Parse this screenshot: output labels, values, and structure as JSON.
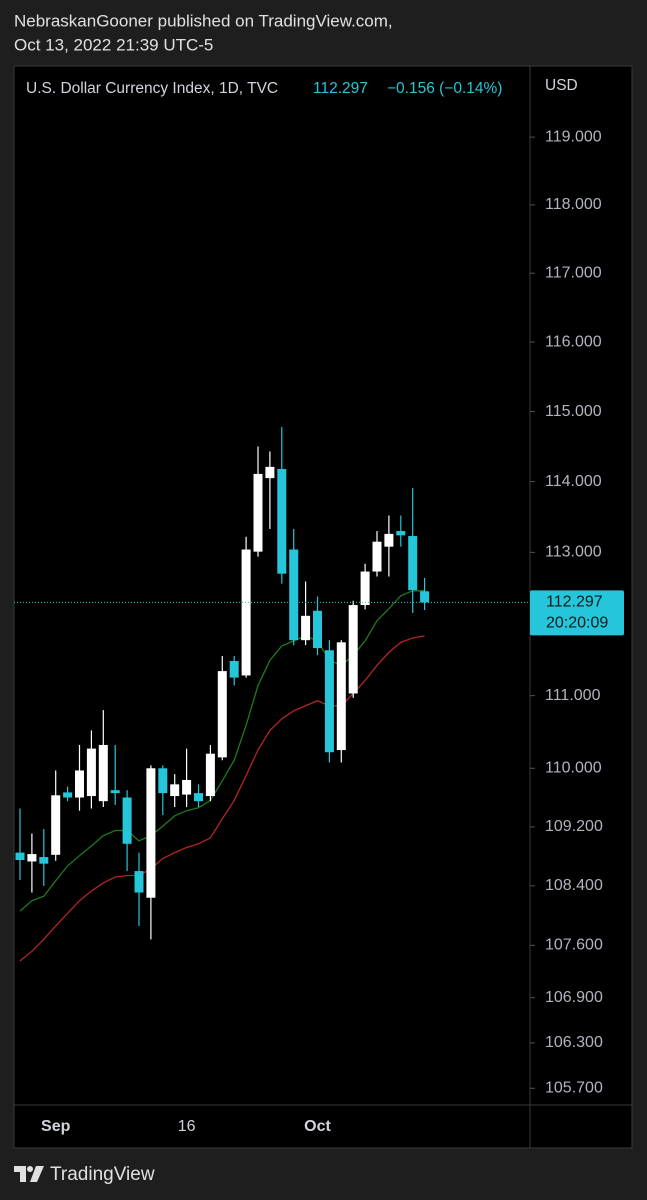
{
  "header": {
    "author_line": "NebraskanGooner published on TradingView.com,",
    "date_line": "Oct 13, 2022 21:39 UTC-5"
  },
  "chart_data": {
    "type": "candlestick",
    "title": "U.S. Dollar Currency Index, 1D, TVC",
    "change": "−0.156 (−0.14%)",
    "currency": "USD",
    "countdown": "20:20:09",
    "categories": [
      null,
      null,
      null,
      "Sep",
      null,
      null,
      null,
      null,
      null,
      null,
      null,
      null,
      null,
      null,
      "16",
      null,
      null,
      null,
      null,
      null,
      null,
      null,
      null,
      null,
      null,
      "Oct",
      null,
      null,
      null,
      null,
      null,
      null,
      null,
      null,
      null
    ],
    "open": [
      108.85,
      108.73,
      108.79,
      108.82,
      109.67,
      109.6,
      109.62,
      109.55,
      109.7,
      109.6,
      108.6,
      108.24,
      110.0,
      109.62,
      109.64,
      109.66,
      109.62,
      110.15,
      111.48,
      111.28,
      113.01,
      114.05,
      114.18,
      113.04,
      111.77,
      112.18,
      111.63,
      110.25,
      111.03,
      112.26,
      112.73,
      113.08,
      113.3,
      113.23,
      112.453
    ],
    "high": [
      109.45,
      109.11,
      109.17,
      109.97,
      109.75,
      110.32,
      110.52,
      110.8,
      110.32,
      109.7,
      108.85,
      110.04,
      110.04,
      109.92,
      110.27,
      109.78,
      110.32,
      111.55,
      111.55,
      113.22,
      114.5,
      114.43,
      114.78,
      113.33,
      112.59,
      112.38,
      111.77,
      111.77,
      112.32,
      112.84,
      113.3,
      113.52,
      113.52,
      113.91,
      112.64
    ],
    "low": [
      108.48,
      108.31,
      108.4,
      108.74,
      109.55,
      109.42,
      109.45,
      109.47,
      109.5,
      108.6,
      107.86,
      107.68,
      109.36,
      109.47,
      109.47,
      109.47,
      109.55,
      110.11,
      111.14,
      111.25,
      112.94,
      113.33,
      112.56,
      111.7,
      111.7,
      111.56,
      110.08,
      110.08,
      110.97,
      112.2,
      112.66,
      112.66,
      113.08,
      112.15,
      112.19
    ],
    "close": [
      108.75,
      108.83,
      108.7,
      109.63,
      109.6,
      109.97,
      110.27,
      110.32,
      109.66,
      108.97,
      108.31,
      110.0,
      109.66,
      109.78,
      109.84,
      109.55,
      110.2,
      111.34,
      111.25,
      113.04,
      114.11,
      114.21,
      112.7,
      111.77,
      112.11,
      111.66,
      110.22,
      111.74,
      112.26,
      112.73,
      113.15,
      113.26,
      113.24,
      112.47,
      112.297
    ],
    "up_color": "#ffffff",
    "down_color": "#26c6da",
    "lines": [
      {
        "color": "#1f7a1f",
        "values": [
          108.06,
          108.2,
          108.26,
          108.47,
          108.67,
          108.81,
          108.94,
          109.08,
          109.15,
          109.15,
          109.01,
          109.08,
          109.21,
          109.35,
          109.42,
          109.46,
          109.56,
          109.83,
          110.11,
          110.59,
          111.14,
          111.49,
          111.69,
          111.76,
          111.83,
          111.76,
          111.49,
          111.42,
          111.56,
          111.76,
          112.04,
          112.21,
          112.39,
          112.46,
          112.46
        ]
      },
      {
        "color": "#b52424",
        "values": [
          107.39,
          107.52,
          107.68,
          107.86,
          108.03,
          108.2,
          108.33,
          108.44,
          108.52,
          108.54,
          108.54,
          108.63,
          108.77,
          108.85,
          108.92,
          108.97,
          109.05,
          109.31,
          109.56,
          109.9,
          110.25,
          110.52,
          110.68,
          110.79,
          110.86,
          110.93,
          110.86,
          110.86,
          111.03,
          111.21,
          111.42,
          111.6,
          111.74,
          111.8,
          111.83
        ]
      }
    ],
    "ylim": [
      105.48,
      120.06
    ],
    "log_scale": true,
    "yticks": [
      {
        "value": 119,
        "label": "119.000"
      },
      {
        "value": 118,
        "label": "118.000"
      },
      {
        "value": 117,
        "label": "117.000"
      },
      {
        "value": 116,
        "label": "116.000"
      },
      {
        "value": 115,
        "label": "115.000"
      },
      {
        "value": 114,
        "label": "114.000"
      },
      {
        "value": 113,
        "label": "113.000"
      },
      {
        "value": 111,
        "label": "111.000"
      },
      {
        "value": 110,
        "label": "110.000"
      },
      {
        "value": 109.2,
        "label": "109.200"
      },
      {
        "value": 108.4,
        "label": "108.400"
      },
      {
        "value": 107.6,
        "label": "107.600"
      },
      {
        "value": 106.9,
        "label": "106.900"
      },
      {
        "value": 106.3,
        "label": "106.300"
      },
      {
        "value": 105.7,
        "label": "105.700"
      }
    ]
  },
  "footer": {
    "brand": "TradingView"
  }
}
